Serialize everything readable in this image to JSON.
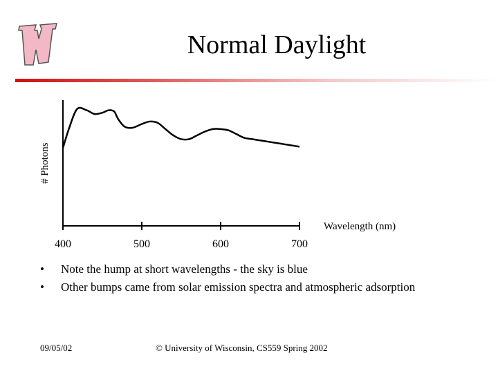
{
  "slide": {
    "title": "Normal Daylight",
    "logo_letter": "W",
    "bullets": [
      "Note the hump at short wavelengths - the sky is blue",
      "Other bumps came from solar emission spectra and atmospheric adsorption"
    ],
    "bullet_symbol": "•",
    "footer_date": "09/05/02",
    "footer_copyright": "© University of Wisconsin, CS559 Spring 2002"
  },
  "colors": {
    "accent": "#cc1111",
    "logo_fill": "#f2b8c6",
    "logo_stroke": "#555555",
    "line": "#000000"
  },
  "chart_data": {
    "type": "line",
    "title": "",
    "xlabel": "Wavelength (nm)",
    "ylabel": "# Photons",
    "xticks": [
      400,
      500,
      600,
      700
    ],
    "xlim": [
      400,
      700
    ],
    "ylim": [
      0,
      1
    ],
    "series": [
      {
        "name": "Normal Daylight",
        "x": [
          400,
          408,
          418,
          430,
          440,
          450,
          458,
          465,
          470,
          478,
          488,
          500,
          510,
          520,
          530,
          540,
          550,
          560,
          570,
          580,
          590,
          600,
          610,
          620,
          630,
          640,
          650,
          660,
          670,
          680,
          690,
          700
        ],
        "y": [
          0.62,
          0.78,
          0.93,
          0.92,
          0.89,
          0.9,
          0.92,
          0.91,
          0.85,
          0.79,
          0.78,
          0.81,
          0.83,
          0.82,
          0.77,
          0.72,
          0.69,
          0.69,
          0.72,
          0.75,
          0.77,
          0.77,
          0.76,
          0.73,
          0.7,
          0.69,
          0.68,
          0.67,
          0.66,
          0.65,
          0.64,
          0.63
        ]
      }
    ]
  }
}
